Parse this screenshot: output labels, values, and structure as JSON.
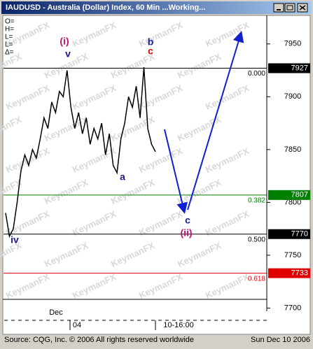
{
  "chart_data": {
    "type": "line",
    "title": "IAUDUSD - Australia (Dollar) Index, 60 Min ...Working...",
    "readouts": [
      "O=",
      "H=",
      "L=",
      "L=",
      "Δ="
    ],
    "watermark": "KeymanFX",
    "values": [
      7790,
      7768,
      7775,
      7800,
      7830,
      7845,
      7835,
      7850,
      7842,
      7860,
      7880,
      7870,
      7895,
      7885,
      7905,
      7900,
      7925,
      7890,
      7870,
      7885,
      7865,
      7880,
      7855,
      7870,
      7860,
      7875,
      7845,
      7865,
      7835,
      7828,
      7860,
      7875,
      7900,
      7890,
      7910,
      7880,
      7928,
      7870,
      7855,
      7848
    ],
    "color": "#000000",
    "ylim": [
      7697,
      7977
    ],
    "yticks": [
      7700,
      7750,
      7800,
      7850,
      7900,
      7950
    ],
    "x_labels": [
      "Dec",
      "04",
      "10-16:00"
    ],
    "levels": [
      {
        "ratio": "0.000",
        "value": 7927,
        "color": "#000000"
      },
      {
        "ratio": "0.382",
        "value": 7807,
        "color": "#008000"
      },
      {
        "ratio": "0.500",
        "value": 7770,
        "color": "#000000"
      },
      {
        "ratio": "0.618",
        "value": 7733,
        "color": "#e00000"
      }
    ],
    "waves": [
      "(i)",
      "v",
      "b",
      "c",
      "a",
      "iv",
      "c",
      "(ii)"
    ],
    "footer": [
      "Source: CQG, Inc. © 2006 All rights reserved worldwide",
      "Sun Dec 10 2006"
    ]
  }
}
